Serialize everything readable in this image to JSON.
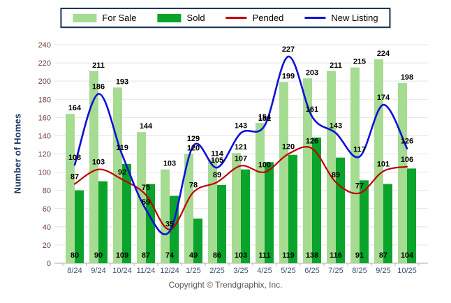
{
  "legend": {
    "items": [
      {
        "label": "For Sale",
        "kind": "bar",
        "color": "#A6DB92"
      },
      {
        "label": "Sold",
        "kind": "bar",
        "color": "#0AA32B"
      },
      {
        "label": "Pended",
        "kind": "line",
        "color": "#C00000"
      },
      {
        "label": "New Listing",
        "kind": "line",
        "color": "#0F0FD9"
      }
    ]
  },
  "chart_data": {
    "type": "combo",
    "categories": [
      "8/24",
      "9/24",
      "10/24",
      "11/24",
      "12/24",
      "1/25",
      "2/25",
      "3/25",
      "4/25",
      "5/25",
      "6/25",
      "7/25",
      "8/25",
      "9/25",
      "10/25"
    ],
    "series": [
      {
        "name": "For Sale",
        "kind": "bar",
        "color": "#A6DB92",
        "values": [
          164,
          211,
          193,
          144,
          103,
          120,
          114,
          121,
          154,
          199,
          203,
          211,
          215,
          224,
          198
        ]
      },
      {
        "name": "Sold",
        "kind": "bar",
        "color": "#0AA32B",
        "values": [
          80,
          90,
          109,
          87,
          74,
          49,
          86,
          103,
          111,
          119,
          138,
          116,
          91,
          87,
          104
        ]
      },
      {
        "name": "Pended",
        "kind": "line",
        "color": "#C00000",
        "values": [
          87,
          103,
          92,
          75,
          37,
          78,
          89,
          107,
          100,
          120,
          126,
          89,
          77,
          101,
          106
        ]
      },
      {
        "name": "New Listing",
        "kind": "line",
        "color": "#0F0FD9",
        "values": [
          108,
          186,
          119,
          59,
          35,
          129,
          105,
          143,
          151,
          227,
          161,
          143,
          117,
          174,
          126
        ]
      }
    ],
    "title": "",
    "xlabel": "",
    "ylabel": "Number of Homes",
    "ylim": [
      0,
      240
    ],
    "ytick_step": 20,
    "grid": true,
    "legend_position": "top"
  },
  "footer": {
    "copyright": "Copyright © Trendgraphix, Inc."
  }
}
